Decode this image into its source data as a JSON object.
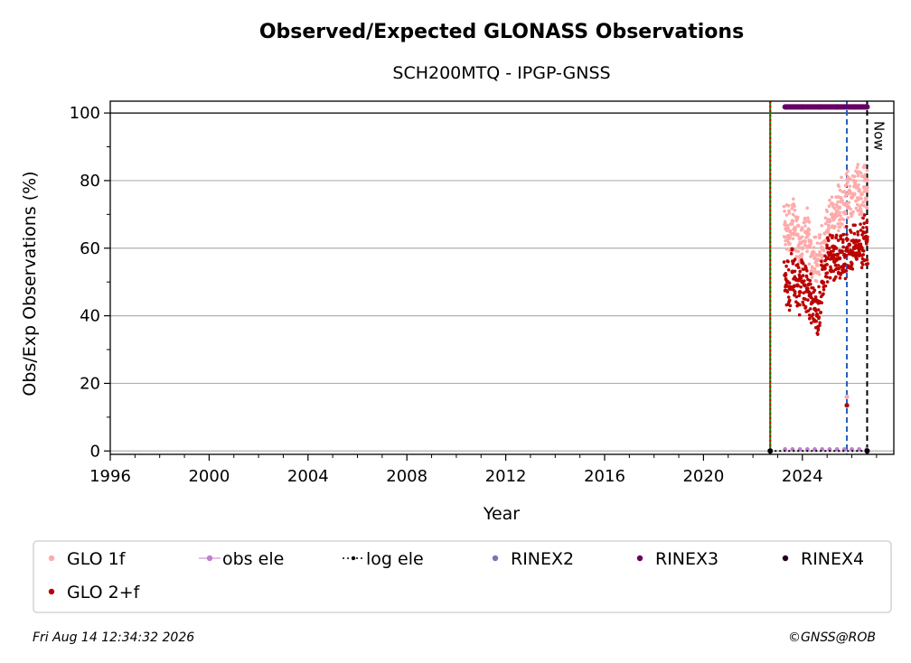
{
  "chart_data": {
    "type": "scatter",
    "title": "Observed/Expected GLONASS Observations",
    "subtitle": "SCH200MTQ - IPGP-GNSS",
    "xlabel": "Year",
    "ylabel": "Obs/Exp Observations (%)",
    "xlim": [
      1996,
      2027.7
    ],
    "ylim": [
      -1,
      103.5
    ],
    "x_ticks": [
      "1996",
      "2000",
      "2004",
      "2008",
      "2012",
      "2016",
      "2020",
      "2024"
    ],
    "x_tick_values": [
      1996,
      2000,
      2004,
      2008,
      2012,
      2016,
      2020,
      2024
    ],
    "y_ticks": [
      "0",
      "20",
      "40",
      "60",
      "80",
      "100"
    ],
    "y_tick_values": [
      0,
      20,
      40,
      60,
      80,
      100
    ],
    "grid": "horizontal",
    "reference_line_y": 100,
    "vertical_lines": [
      {
        "x": 2022.7,
        "style": "solid",
        "color": "#008000"
      },
      {
        "x": 2022.7,
        "style": "dotted",
        "color": "#cc0000"
      },
      {
        "x": 2025.8,
        "style": "dashed",
        "color": "#1f5fbf"
      },
      {
        "x": 2026.62,
        "style": "dashed",
        "color": "#000000",
        "label": "Now"
      }
    ],
    "series": [
      {
        "name": "GLO 1f",
        "color": "#ffaaaa",
        "x": [
          2023.3,
          2023.4,
          2023.5,
          2023.6,
          2023.7,
          2023.8,
          2023.9,
          2024.0,
          2024.1,
          2024.2,
          2024.3,
          2024.4,
          2024.5,
          2024.6,
          2024.7,
          2024.8,
          2024.9,
          2025.0,
          2025.1,
          2025.2,
          2025.3,
          2025.4,
          2025.5,
          2025.6,
          2025.7,
          2025.8,
          2025.9,
          2026.0,
          2026.1,
          2026.2,
          2026.3,
          2026.4,
          2026.5,
          2026.6
        ],
        "y": [
          67,
          66,
          65,
          68,
          66,
          64,
          63,
          60,
          62,
          65,
          62,
          58,
          57,
          55,
          58,
          60,
          62,
          65,
          68,
          70,
          69,
          71,
          72,
          74,
          73,
          76,
          77,
          75,
          76,
          78,
          77,
          76,
          78,
          77
        ]
      },
      {
        "name": "GLO 2+f",
        "color": "#bb0000",
        "x": [
          2023.3,
          2023.4,
          2023.5,
          2023.6,
          2023.7,
          2023.8,
          2023.9,
          2024.0,
          2024.1,
          2024.2,
          2024.3,
          2024.4,
          2024.5,
          2024.6,
          2024.7,
          2024.8,
          2024.9,
          2025.0,
          2025.1,
          2025.2,
          2025.3,
          2025.4,
          2025.5,
          2025.6,
          2025.7,
          2025.8,
          2025.9,
          2026.0,
          2026.1,
          2026.2,
          2026.3,
          2026.4,
          2026.5,
          2026.6
        ],
        "y": [
          52,
          50,
          48,
          53,
          51,
          49,
          47,
          50,
          49,
          48,
          46,
          44,
          42,
          40,
          44,
          50,
          54,
          57,
          58,
          57,
          56,
          58,
          57,
          59,
          58,
          60,
          61,
          59,
          60,
          62,
          61,
          60,
          63,
          62
        ]
      },
      {
        "name": "obs ele",
        "color": "#c080d0",
        "x": [
          2023.3,
          2023.6,
          2023.9,
          2024.2,
          2024.5,
          2024.8,
          2025.1,
          2025.4,
          2025.7,
          2026.0,
          2026.3,
          2026.6
        ],
        "y": [
          0.5,
          0.5,
          0.5,
          0.5,
          0.5,
          0.5,
          0.5,
          0.5,
          0.5,
          0.5,
          0.5,
          0.5
        ]
      },
      {
        "name": "log ele",
        "color": "#000000",
        "x": [
          2022.7,
          2026.62
        ],
        "y": [
          0,
          0
        ]
      },
      {
        "name": "RINEX2",
        "color": "#8070b8",
        "x": [],
        "y": []
      },
      {
        "name": "RINEX3",
        "color": "#660066",
        "x": [
          2023.3,
          2024.0,
          2024.7,
          2025.4,
          2026.1,
          2026.62
        ],
        "y": [
          101.8,
          101.8,
          101.8,
          101.8,
          101.8,
          101.8
        ]
      },
      {
        "name": "RINEX4",
        "color": "#220022",
        "x": [],
        "y": []
      }
    ],
    "outliers": [
      {
        "series": "GLO 1f",
        "x": 2025.8,
        "y": 16
      },
      {
        "series": "GLO 2+f",
        "x": 2025.8,
        "y": 13.5
      }
    ],
    "legend": {
      "placement": "below",
      "entries": [
        "GLO 1f",
        "obs ele",
        "log ele",
        "RINEX2",
        "RINEX3",
        "RINEX4",
        "GLO 2+f"
      ]
    },
    "now_label": "Now"
  },
  "footer": {
    "timestamp": "Fri Aug 14 12:34:32 2026",
    "credit": "©GNSS@ROB"
  }
}
